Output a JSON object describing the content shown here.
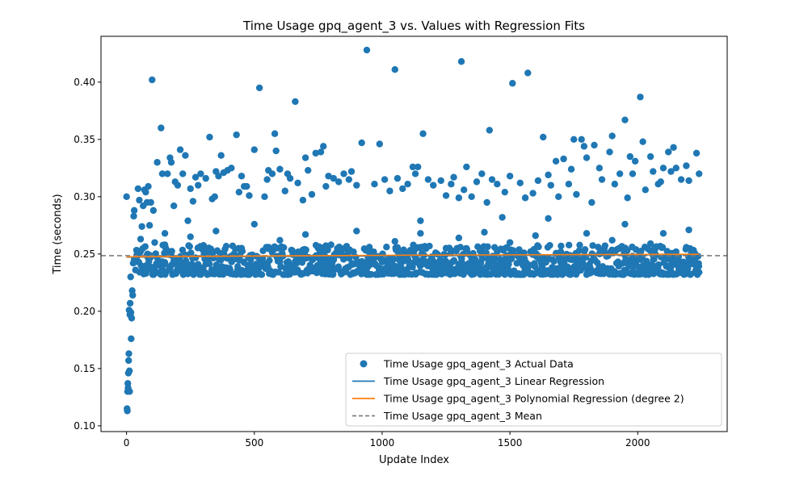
{
  "chart_data": {
    "type": "scatter",
    "title": "Time Usage gpq_agent_3 vs. Values with Regression Fits",
    "xlabel": "Update Index",
    "ylabel": "Time (seconds)",
    "xlim": [
      -100,
      2350
    ],
    "ylim": [
      0.095,
      0.44
    ],
    "xticks": [
      0,
      500,
      1000,
      1500,
      2000
    ],
    "yticks": [
      0.1,
      0.15,
      0.2,
      0.25,
      0.3,
      0.35,
      0.4
    ],
    "ytick_labels": [
      "0.10",
      "0.15",
      "0.20",
      "0.25",
      "0.30",
      "0.35",
      "0.40"
    ],
    "grid": false,
    "legend_position": "lower-right",
    "colors": {
      "scatter": "#1f77b4",
      "linear": "#1f77b4",
      "poly": "#ff7f0e",
      "mean": "#7f7f7f"
    },
    "series": [
      {
        "name": "Time Usage gpq_agent_3 Actual Data",
        "kind": "scatter",
        "points": [
          [
            0,
            0.3
          ],
          [
            2,
            0.115
          ],
          [
            3,
            0.113
          ],
          [
            4,
            0.13
          ],
          [
            5,
            0.137
          ],
          [
            6,
            0.133
          ],
          [
            7,
            0.146
          ],
          [
            8,
            0.157
          ],
          [
            9,
            0.163
          ],
          [
            10,
            0.201
          ],
          [
            11,
            0.148
          ],
          [
            12,
            0.13
          ],
          [
            13,
            0.197
          ],
          [
            14,
            0.207
          ],
          [
            15,
            0.197
          ],
          [
            16,
            0.23
          ],
          [
            17,
            0.199
          ],
          [
            18,
            0.176
          ],
          [
            20,
            0.194
          ],
          [
            22,
            0.218
          ],
          [
            24,
            0.214
          ],
          [
            26,
            0.242
          ],
          [
            28,
            0.283
          ],
          [
            30,
            0.288
          ],
          [
            40,
            0.253
          ],
          [
            45,
            0.307
          ],
          [
            50,
            0.297
          ],
          [
            55,
            0.263
          ],
          [
            60,
            0.274
          ],
          [
            65,
            0.292
          ],
          [
            70,
            0.306
          ],
          [
            75,
            0.304
          ],
          [
            80,
            0.295
          ],
          [
            85,
            0.309
          ],
          [
            90,
            0.275
          ],
          [
            95,
            0.295
          ],
          [
            100,
            0.402
          ],
          [
            105,
            0.288
          ],
          [
            110,
            0.26
          ],
          [
            120,
            0.33
          ],
          [
            135,
            0.36
          ],
          [
            140,
            0.32
          ],
          [
            150,
            0.268
          ],
          [
            160,
            0.32
          ],
          [
            170,
            0.334
          ],
          [
            175,
            0.33
          ],
          [
            185,
            0.292
          ],
          [
            190,
            0.313
          ],
          [
            200,
            0.31
          ],
          [
            210,
            0.341
          ],
          [
            220,
            0.32
          ],
          [
            230,
            0.336
          ],
          [
            240,
            0.279
          ],
          [
            250,
            0.307
          ],
          [
            260,
            0.296
          ],
          [
            270,
            0.317
          ],
          [
            280,
            0.31
          ],
          [
            290,
            0.32
          ],
          [
            310,
            0.316
          ],
          [
            325,
            0.352
          ],
          [
            335,
            0.298
          ],
          [
            345,
            0.3
          ],
          [
            350,
            0.322
          ],
          [
            360,
            0.318
          ],
          [
            370,
            0.336
          ],
          [
            380,
            0.321
          ],
          [
            395,
            0.323
          ],
          [
            410,
            0.325
          ],
          [
            430,
            0.354
          ],
          [
            440,
            0.304
          ],
          [
            450,
            0.318
          ],
          [
            460,
            0.309
          ],
          [
            470,
            0.309
          ],
          [
            480,
            0.301
          ],
          [
            500,
            0.341
          ],
          [
            520,
            0.395
          ],
          [
            540,
            0.3
          ],
          [
            550,
            0.315
          ],
          [
            555,
            0.323
          ],
          [
            570,
            0.32
          ],
          [
            580,
            0.355
          ],
          [
            585,
            0.34
          ],
          [
            600,
            0.324
          ],
          [
            620,
            0.305
          ],
          [
            630,
            0.32
          ],
          [
            640,
            0.316
          ],
          [
            660,
            0.383
          ],
          [
            670,
            0.312
          ],
          [
            690,
            0.297
          ],
          [
            700,
            0.334
          ],
          [
            710,
            0.323
          ],
          [
            725,
            0.302
          ],
          [
            740,
            0.338
          ],
          [
            760,
            0.339
          ],
          [
            770,
            0.344
          ],
          [
            780,
            0.309
          ],
          [
            790,
            0.318
          ],
          [
            810,
            0.316
          ],
          [
            830,
            0.313
          ],
          [
            850,
            0.32
          ],
          [
            870,
            0.315
          ],
          [
            880,
            0.322
          ],
          [
            900,
            0.31
          ],
          [
            920,
            0.347
          ],
          [
            940,
            0.428
          ],
          [
            970,
            0.311
          ],
          [
            990,
            0.346
          ],
          [
            1010,
            0.315
          ],
          [
            1030,
            0.305
          ],
          [
            1050,
            0.411
          ],
          [
            1060,
            0.316
          ],
          [
            1080,
            0.307
          ],
          [
            1100,
            0.311
          ],
          [
            1120,
            0.326
          ],
          [
            1130,
            0.32
          ],
          [
            1140,
            0.326
          ],
          [
            1150,
            0.279
          ],
          [
            1160,
            0.355
          ],
          [
            1180,
            0.315
          ],
          [
            1200,
            0.31
          ],
          [
            1230,
            0.314
          ],
          [
            1250,
            0.301
          ],
          [
            1270,
            0.311
          ],
          [
            1280,
            0.317
          ],
          [
            1300,
            0.299
          ],
          [
            1310,
            0.418
          ],
          [
            1320,
            0.306
          ],
          [
            1330,
            0.326
          ],
          [
            1350,
            0.3
          ],
          [
            1370,
            0.313
          ],
          [
            1390,
            0.32
          ],
          [
            1410,
            0.295
          ],
          [
            1420,
            0.358
          ],
          [
            1430,
            0.315
          ],
          [
            1450,
            0.311
          ],
          [
            1470,
            0.282
          ],
          [
            1480,
            0.304
          ],
          [
            1500,
            0.318
          ],
          [
            1510,
            0.399
          ],
          [
            1540,
            0.312
          ],
          [
            1560,
            0.299
          ],
          [
            1570,
            0.408
          ],
          [
            1590,
            0.303
          ],
          [
            1610,
            0.314
          ],
          [
            1630,
            0.352
          ],
          [
            1650,
            0.319
          ],
          [
            1660,
            0.31
          ],
          [
            1680,
            0.331
          ],
          [
            1690,
            0.3
          ],
          [
            1710,
            0.333
          ],
          [
            1730,
            0.311
          ],
          [
            1740,
            0.324
          ],
          [
            1750,
            0.35
          ],
          [
            1760,
            0.302
          ],
          [
            1780,
            0.35
          ],
          [
            1790,
            0.344
          ],
          [
            1800,
            0.334
          ],
          [
            1820,
            0.295
          ],
          [
            1830,
            0.345
          ],
          [
            1850,
            0.325
          ],
          [
            1860,
            0.315
          ],
          [
            1890,
            0.339
          ],
          [
            1900,
            0.353
          ],
          [
            1910,
            0.311
          ],
          [
            1930,
            0.32
          ],
          [
            1950,
            0.367
          ],
          [
            1960,
            0.299
          ],
          [
            1970,
            0.335
          ],
          [
            1980,
            0.32
          ],
          [
            1990,
            0.331
          ],
          [
            2010,
            0.387
          ],
          [
            2020,
            0.348
          ],
          [
            2030,
            0.306
          ],
          [
            2050,
            0.335
          ],
          [
            2060,
            0.322
          ],
          [
            2080,
            0.311
          ],
          [
            2090,
            0.313
          ],
          [
            2100,
            0.325
          ],
          [
            2120,
            0.339
          ],
          [
            2130,
            0.322
          ],
          [
            2140,
            0.343
          ],
          [
            2150,
            0.325
          ],
          [
            2170,
            0.315
          ],
          [
            2190,
            0.327
          ],
          [
            2200,
            0.314
          ],
          [
            2230,
            0.338
          ],
          [
            2240,
            0.32
          ],
          [
            35,
            0.236
          ],
          [
            90,
            0.249
          ],
          [
            150,
            0.258
          ],
          [
            200,
            0.244
          ],
          [
            250,
            0.265
          ],
          [
            300,
            0.238
          ],
          [
            350,
            0.27
          ],
          [
            400,
            0.246
          ],
          [
            450,
            0.255
          ],
          [
            500,
            0.276
          ],
          [
            550,
            0.241
          ],
          [
            600,
            0.262
          ],
          [
            650,
            0.252
          ],
          [
            700,
            0.267
          ],
          [
            750,
            0.239
          ],
          [
            800,
            0.258
          ],
          [
            850,
            0.247
          ],
          [
            900,
            0.27
          ],
          [
            950,
            0.256
          ],
          [
            1000,
            0.243
          ],
          [
            1050,
            0.261
          ],
          [
            1100,
            0.25
          ],
          [
            1150,
            0.268
          ],
          [
            1200,
            0.24
          ],
          [
            1250,
            0.255
          ],
          [
            1300,
            0.264
          ],
          [
            1350,
            0.246
          ],
          [
            1400,
            0.269
          ],
          [
            1450,
            0.252
          ],
          [
            1500,
            0.26
          ],
          [
            1550,
            0.241
          ],
          [
            1600,
            0.266
          ],
          [
            1650,
            0.281
          ],
          [
            1700,
            0.257
          ],
          [
            1750,
            0.245
          ],
          [
            1800,
            0.268
          ],
          [
            1850,
            0.25
          ],
          [
            1900,
            0.262
          ],
          [
            1950,
            0.276
          ],
          [
            2000,
            0.246
          ],
          [
            2050,
            0.259
          ],
          [
            2100,
            0.268
          ],
          [
            2150,
            0.252
          ],
          [
            2200,
            0.271
          ],
          [
            2240,
            0.234
          ]
        ]
      },
      {
        "name": "Time Usage gpq_agent_3 Linear Regression",
        "kind": "line",
        "x": [
          0,
          2240
        ],
        "y": [
          0.2472,
          0.2495
        ]
      },
      {
        "name": "Time Usage gpq_agent_3 Polynomial Regression (degree 2)",
        "kind": "line",
        "x": [
          0,
          1120,
          2240
        ],
        "y": [
          0.2475,
          0.249,
          0.2498
        ]
      },
      {
        "name": "Time Usage gpq_agent_3 Mean",
        "kind": "hline",
        "y": 0.2485
      }
    ],
    "band": {
      "x_start": 30,
      "x_end": 2240,
      "y_low": 0.232,
      "y_high": 0.258,
      "step": 3
    }
  }
}
